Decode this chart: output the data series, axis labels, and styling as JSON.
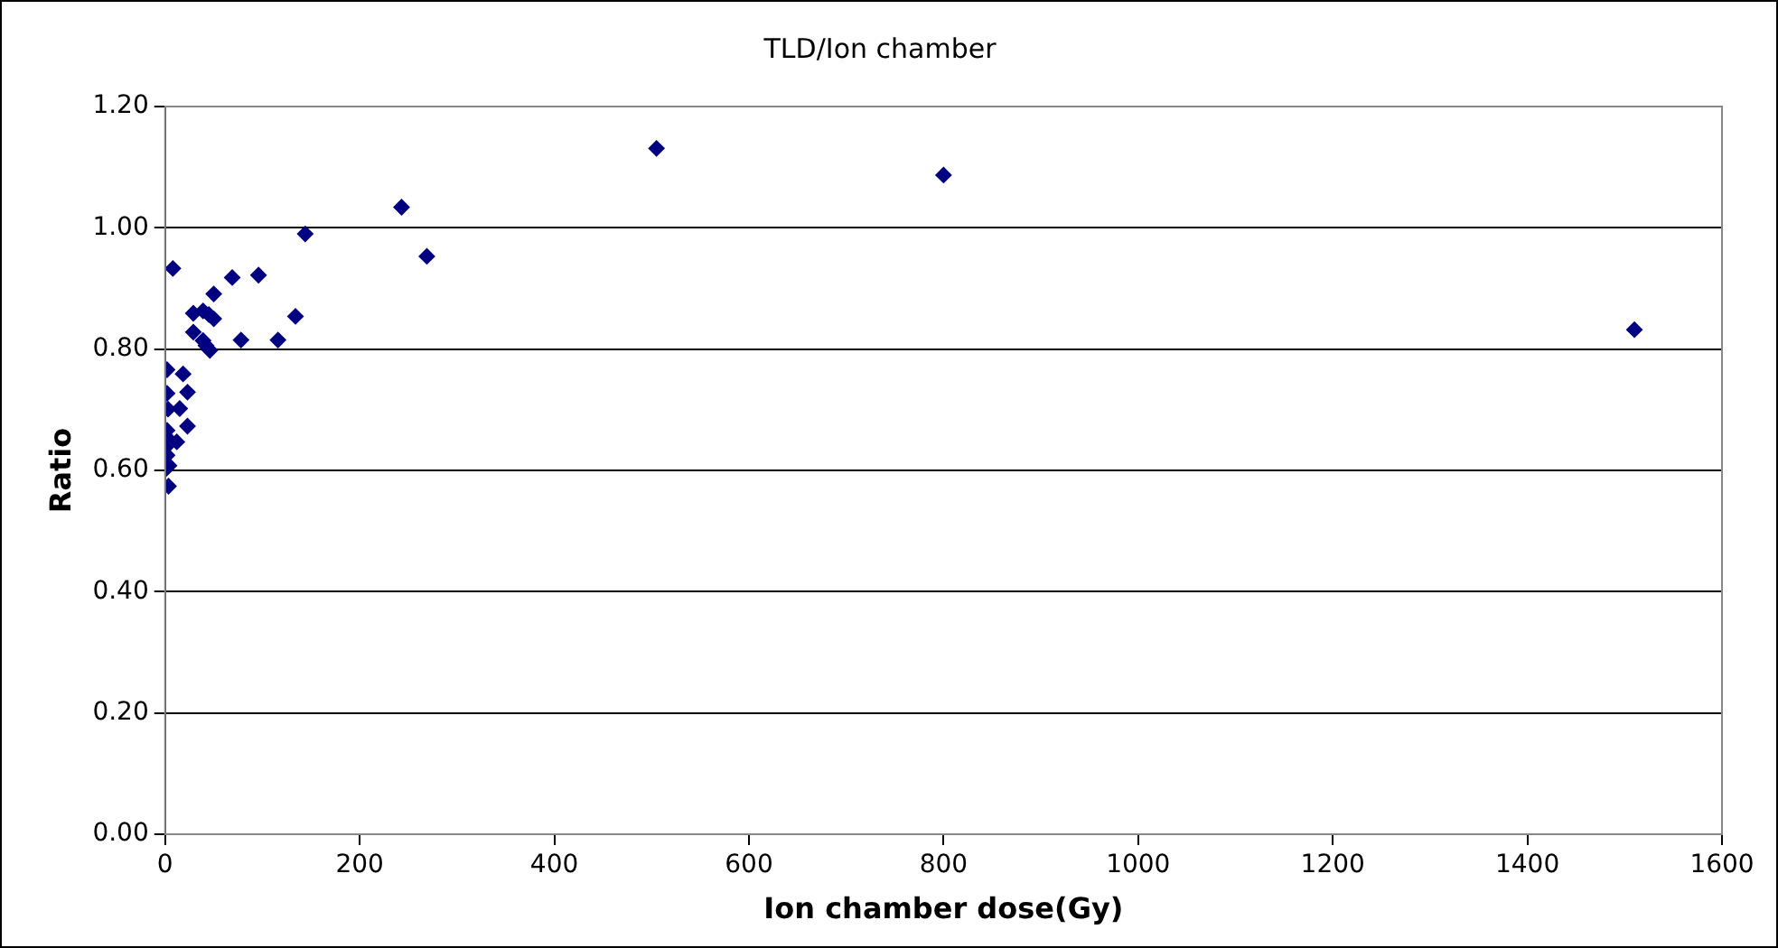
{
  "chart_data": {
    "type": "scatter",
    "title": "TLD/Ion chamber",
    "xlabel": "Ion chamber dose(Gy)",
    "ylabel": "Ratio",
    "x": [
      505,
      800,
      1510,
      243,
      144,
      269,
      8,
      69,
      96,
      50,
      29,
      39,
      45,
      50,
      134,
      29,
      39,
      46,
      78,
      116,
      42,
      2,
      18.5,
      2,
      23,
      3,
      15,
      2,
      23,
      1,
      12,
      0.5,
      2,
      4,
      0.5,
      3.5
    ],
    "series": [
      {
        "color": "#000080",
        "values": [
          1.131,
          1.087,
          0.832,
          1.034,
          0.99,
          0.953,
          0.933,
          0.918,
          0.922,
          0.891,
          0.859,
          0.863,
          0.857,
          0.85,
          0.854,
          0.828,
          0.814,
          0.798,
          0.815,
          0.815,
          0.806,
          0.766,
          0.759,
          0.727,
          0.729,
          0.701,
          0.702,
          0.666,
          0.673,
          0.656,
          0.647,
          0.638,
          0.625,
          0.608,
          0.602,
          0.574
        ]
      }
    ],
    "xlim": [
      0,
      1600
    ],
    "xticks": [
      0,
      200,
      400,
      600,
      800,
      1000,
      1200,
      1400,
      1600
    ],
    "ylim": [
      0,
      1.2
    ],
    "yticks": [
      {
        "value": 0,
        "label": "0.00"
      },
      {
        "value": 0.2,
        "label": "0.20"
      },
      {
        "value": 0.4,
        "label": "0.40"
      },
      {
        "value": 0.6,
        "label": "0.60"
      },
      {
        "value": 0.8,
        "label": "0.80"
      },
      {
        "value": 1,
        "label": "1.00"
      },
      {
        "value": 1.2,
        "label": "1.20"
      }
    ],
    "grid": "y",
    "legend": false,
    "marker": "diamond"
  }
}
